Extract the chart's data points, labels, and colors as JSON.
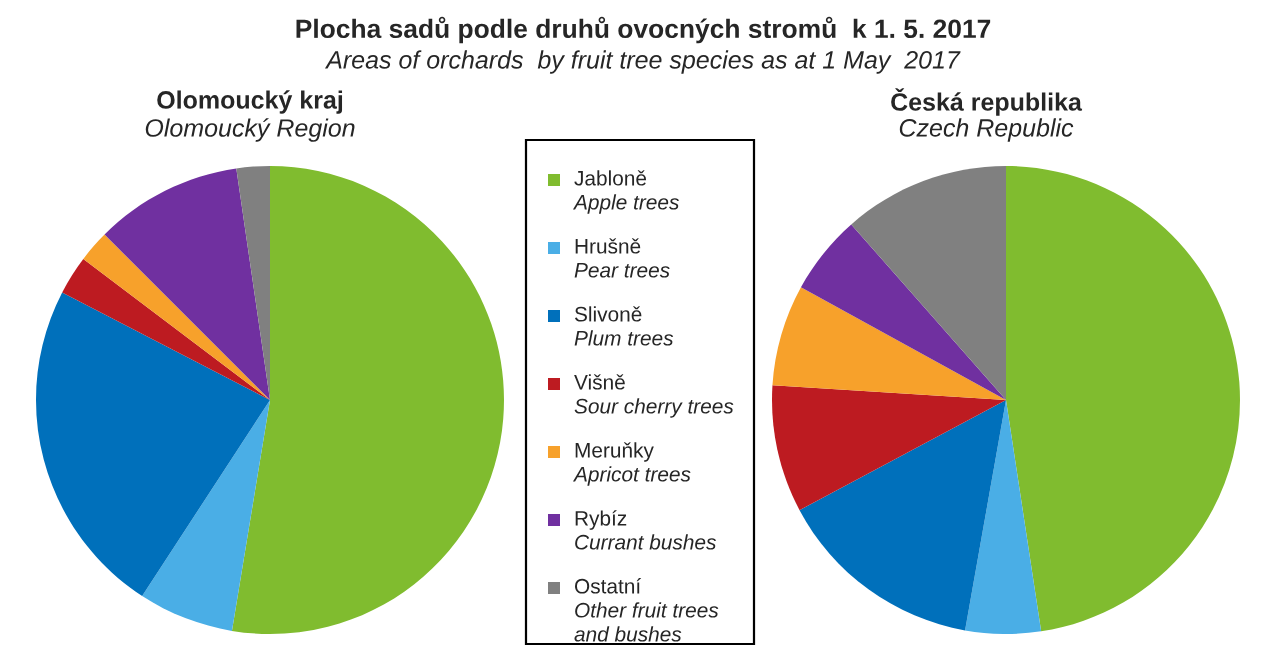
{
  "chart_data": [
    {
      "type": "other",
      "title": "Plocha sadů podle druhů ovocných stromů  k 1. 5. 2017",
      "subtitle": "Areas of orchards  by fruit tree species as at 1 May  2017"
    },
    {
      "type": "pie",
      "title": "Olomoucký kraj",
      "subtitle": "Olomoucký Region",
      "legend": "right",
      "categories": [
        "Jabloně\nApple trees",
        "Hrušně\nPear trees",
        "Slivoně\nPlum trees",
        "Višně\nSour cherry trees",
        "Meruňky\nApricot trees",
        "Rybíz\nCurrant bushes",
        "Ostatní\nOther fruit trees\nand bushes"
      ],
      "values": [
        52.6,
        6.6,
        23.4,
        2.7,
        2.2,
        10.2,
        2.3
      ],
      "colors": [
        "#80bc2f",
        "#4aaee6",
        "#0070bb",
        "#bd1b21",
        "#f7a12b",
        "#7030a0",
        "#808080"
      ]
    },
    {
      "type": "pie",
      "title": "Česká republika",
      "subtitle": "Czech Republic",
      "categories": [
        null,
        null,
        null,
        null,
        null,
        null,
        null
      ],
      "values": [
        47.6,
        5.2,
        14.4,
        8.8,
        7.0,
        5.5,
        11.5
      ],
      "colors": [
        "#80bc2f",
        "#4aaee6",
        "#0070bb",
        "#bd1b21",
        "#f7a12b",
        "#7030a0",
        "#808080"
      ]
    }
  ]
}
